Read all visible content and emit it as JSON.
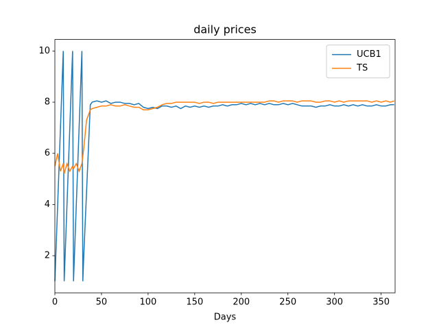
{
  "chart_data": {
    "type": "line",
    "title": "daily prices",
    "x_label": "Days",
    "x": [
      0,
      3,
      6,
      9,
      10,
      13,
      16,
      19,
      20,
      23,
      26,
      29,
      30,
      31,
      34,
      38,
      40,
      45,
      50,
      55,
      60,
      65,
      70,
      75,
      80,
      85,
      90,
      95,
      100,
      105,
      110,
      115,
      120,
      125,
      130,
      135,
      140,
      145,
      150,
      155,
      160,
      165,
      170,
      175,
      180,
      185,
      190,
      195,
      200,
      205,
      210,
      215,
      220,
      225,
      230,
      235,
      240,
      245,
      250,
      255,
      260,
      265,
      270,
      275,
      280,
      285,
      290,
      295,
      300,
      305,
      310,
      315,
      320,
      325,
      330,
      335,
      340,
      345,
      350,
      355,
      360,
      364
    ],
    "series": [
      {
        "name": "UCB1",
        "color": "#1f77b4",
        "values": [
          1,
          4,
          7,
          10,
          1,
          4,
          7,
          10,
          1,
          4,
          7,
          10,
          1,
          2,
          4.5,
          7.9,
          8.0,
          8.05,
          8.0,
          8.05,
          7.95,
          8.0,
          8.0,
          7.95,
          7.95,
          7.9,
          7.95,
          7.8,
          7.75,
          7.8,
          7.75,
          7.85,
          7.85,
          7.8,
          7.85,
          7.75,
          7.85,
          7.8,
          7.85,
          7.8,
          7.85,
          7.8,
          7.85,
          7.85,
          7.9,
          7.85,
          7.9,
          7.9,
          7.95,
          7.9,
          7.95,
          7.9,
          7.95,
          7.9,
          7.95,
          7.9,
          7.9,
          7.95,
          7.9,
          7.95,
          7.9,
          7.85,
          7.85,
          7.85,
          7.8,
          7.85,
          7.85,
          7.9,
          7.85,
          7.85,
          7.9,
          7.85,
          7.9,
          7.85,
          7.9,
          7.85,
          7.85,
          7.9,
          7.85,
          7.85,
          7.9,
          7.9
        ]
      },
      {
        "name": "TS",
        "color": "#ff7f0e",
        "values": [
          5.5,
          6.0,
          5.3,
          5.6,
          5.2,
          5.6,
          5.3,
          5.5,
          5.4,
          5.6,
          5.3,
          5.6,
          5.9,
          6.2,
          7.3,
          7.7,
          7.75,
          7.8,
          7.85,
          7.85,
          7.9,
          7.85,
          7.85,
          7.9,
          7.85,
          7.8,
          7.8,
          7.7,
          7.7,
          7.75,
          7.8,
          7.9,
          7.95,
          7.95,
          8.0,
          8.0,
          8.0,
          8.0,
          8.0,
          7.95,
          8.0,
          8.0,
          7.95,
          8.0,
          8.0,
          8.0,
          8.0,
          8.0,
          8.0,
          8.0,
          8.0,
          8.0,
          8.0,
          8.0,
          8.05,
          8.05,
          8.0,
          8.05,
          8.05,
          8.05,
          8.0,
          8.05,
          8.05,
          8.05,
          8.0,
          8.0,
          8.05,
          8.05,
          8.0,
          8.05,
          8.0,
          8.05,
          8.05,
          8.05,
          8.05,
          8.05,
          8.0,
          8.05,
          8.0,
          8.05,
          8.0,
          8.05
        ]
      }
    ],
    "xlim": [
      0,
      365
    ],
    "ylim": [
      0.55,
      10.45
    ],
    "xticks": [
      0,
      50,
      100,
      150,
      200,
      250,
      300,
      350
    ],
    "yticks": [
      2,
      4,
      6,
      8,
      10
    ],
    "legend": "upper right"
  }
}
